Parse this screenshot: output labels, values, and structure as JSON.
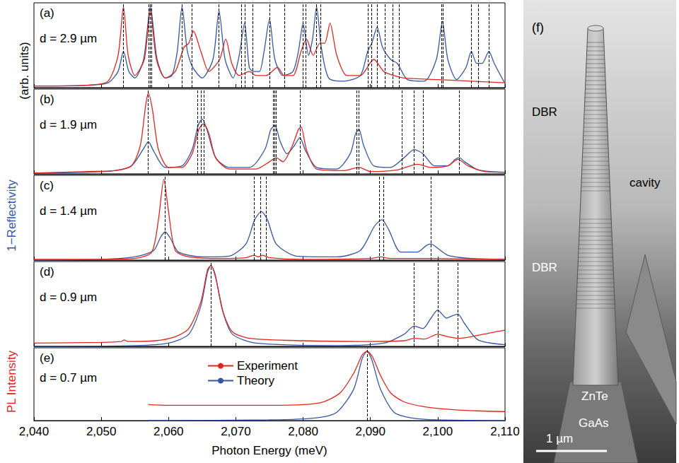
{
  "chart_data": [
    {
      "type": "line",
      "panel": "(a)",
      "title": "d = 2.9 µm",
      "xlim": [
        2040,
        2110
      ],
      "xticks": [
        2040,
        2050,
        2060,
        2070,
        2080,
        2090,
        2100,
        2110
      ],
      "ylim": [
        0,
        1.05
      ],
      "tick_labels": false,
      "modes": [
        2053.3,
        2057.1,
        2057.3,
        2057.5,
        2062,
        2063.5,
        2067.5,
        2070.8,
        2071.3,
        2072.5,
        2075,
        2077.2,
        2080,
        2080.4,
        2082,
        2082.6,
        2089.6,
        2090.2,
        2091,
        2092.2,
        2093.3,
        2094.3,
        2100.6,
        2100.8,
        2105,
        2106,
        2107.6
      ],
      "series": [
        {
          "name": "Experiment",
          "color": "#e3241c",
          "x": [
            2040,
            2048,
            2051,
            2052.5,
            2053.3,
            2054,
            2055,
            2056.4,
            2057.3,
            2058.2,
            2059.5,
            2061,
            2062.3,
            2063,
            2063.7,
            2064.8,
            2066,
            2067.6,
            2068.5,
            2069.4,
            2070.5,
            2072,
            2073,
            2074.5,
            2076.2,
            2077.2,
            2078.5,
            2079.7,
            2080.5,
            2081.5,
            2082.5,
            2083.2,
            2084,
            2085,
            2086.5,
            2088.5,
            2090.5,
            2092,
            2093.5,
            2095,
            2100,
            2105,
            2110
          ],
          "values": [
            0.02,
            0.03,
            0.08,
            0.4,
            1.0,
            0.4,
            0.15,
            0.35,
            0.95,
            0.35,
            0.12,
            0.2,
            0.5,
            0.55,
            0.7,
            0.45,
            0.2,
            0.35,
            0.6,
            0.3,
            0.15,
            0.2,
            0.15,
            0.15,
            0.25,
            0.15,
            0.15,
            0.45,
            0.6,
            0.4,
            0.55,
            0.55,
            0.8,
            0.4,
            0.15,
            0.15,
            0.35,
            0.2,
            0.15,
            0.12,
            0.1,
            0.08,
            0.06
          ]
        },
        {
          "name": "Theory",
          "color": "#3455a8",
          "x": [
            2040,
            2048,
            2051,
            2052.5,
            2053.3,
            2054.1,
            2055,
            2056.3,
            2057.3,
            2058.3,
            2059.5,
            2060.5,
            2061.3,
            2062,
            2062.8,
            2063.6,
            2065,
            2066.6,
            2067.5,
            2068.4,
            2069.6,
            2070.5,
            2071.3,
            2072,
            2072.6,
            2073.5,
            2074.2,
            2075,
            2075.8,
            2077,
            2078.5,
            2079.3,
            2080,
            2080.8,
            2081.4,
            2082,
            2082.7,
            2083.8,
            2086,
            2088.5,
            2089.6,
            2090.2,
            2091,
            2091.8,
            2093,
            2094,
            2095.5,
            2098,
            2099.8,
            2100.7,
            2101.5,
            2102.8,
            2104.2,
            2105,
            2105.8,
            2106.6,
            2107.6,
            2108.4,
            2110
          ],
          "values": [
            0.02,
            0.03,
            0.06,
            0.2,
            0.45,
            0.2,
            0.12,
            0.35,
            1.0,
            0.35,
            0.12,
            0.15,
            0.45,
            1.0,
            0.45,
            0.25,
            0.12,
            0.35,
            0.95,
            0.35,
            0.12,
            0.4,
            0.8,
            0.25,
            0.2,
            0.2,
            0.45,
            0.85,
            0.35,
            0.15,
            0.2,
            0.45,
            0.8,
            0.4,
            0.6,
            1.0,
            0.5,
            0.12,
            0.08,
            0.15,
            0.45,
            0.55,
            0.75,
            0.5,
            0.35,
            0.3,
            0.1,
            0.08,
            0.35,
            0.82,
            0.35,
            0.1,
            0.25,
            0.45,
            0.3,
            0.3,
            0.45,
            0.3,
            0.05
          ]
        }
      ]
    },
    {
      "type": "line",
      "panel": "(b)",
      "title": "d = 1.9 µm",
      "xlim": [
        2040,
        2110
      ],
      "xticks": [
        2040,
        2050,
        2060,
        2070,
        2080,
        2090,
        2100,
        2110
      ],
      "ylim": [
        0,
        1.05
      ],
      "tick_labels": false,
      "modes": [
        2057,
        2064.3,
        2064.8,
        2065.3,
        2075.5,
        2075.8,
        2076,
        2079.5,
        2088,
        2088.3,
        2094.7,
        2096.5,
        2097.8,
        2103.2
      ],
      "series": [
        {
          "name": "Experiment",
          "color": "#e3241c",
          "x": [
            2040,
            2048,
            2052,
            2054.5,
            2055.8,
            2056.6,
            2057,
            2057.6,
            2058.5,
            2060,
            2062,
            2063.5,
            2064.5,
            2065.2,
            2066,
            2067,
            2069,
            2073,
            2075,
            2076,
            2077,
            2078.4,
            2079.3,
            2079.7,
            2080.5,
            2082,
            2086,
            2088.3,
            2090,
            2094,
            2097,
            2099,
            2101.5,
            2103,
            2104.5,
            2107,
            2110
          ],
          "values": [
            0.01,
            0.03,
            0.04,
            0.1,
            0.35,
            0.85,
            1.0,
            0.8,
            0.3,
            0.08,
            0.08,
            0.25,
            0.55,
            0.62,
            0.5,
            0.2,
            0.06,
            0.06,
            0.15,
            0.2,
            0.15,
            0.35,
            0.55,
            0.58,
            0.3,
            0.06,
            0.04,
            0.08,
            0.03,
            0.05,
            0.12,
            0.08,
            0.1,
            0.18,
            0.1,
            0.03,
            0.02
          ]
        },
        {
          "name": "Theory",
          "color": "#3455a8",
          "x": [
            2040,
            2048,
            2052,
            2054.5,
            2056.2,
            2057,
            2057.8,
            2059.5,
            2062,
            2063.5,
            2064.4,
            2065,
            2065.7,
            2067,
            2069,
            2072,
            2074.3,
            2075.2,
            2075.8,
            2076.6,
            2077.6,
            2078.7,
            2079.5,
            2080.4,
            2082,
            2085,
            2087,
            2087.8,
            2088.3,
            2089,
            2090.5,
            2093,
            2095,
            2096.5,
            2097.8,
            2099.5,
            2101.5,
            2102.6,
            2103.2,
            2104,
            2106,
            2110
          ],
          "values": [
            0.01,
            0.02,
            0.04,
            0.1,
            0.3,
            0.4,
            0.28,
            0.08,
            0.1,
            0.3,
            0.6,
            0.68,
            0.55,
            0.2,
            0.08,
            0.08,
            0.3,
            0.55,
            0.6,
            0.4,
            0.25,
            0.35,
            0.45,
            0.28,
            0.08,
            0.06,
            0.25,
            0.5,
            0.55,
            0.35,
            0.1,
            0.08,
            0.2,
            0.3,
            0.25,
            0.1,
            0.1,
            0.18,
            0.2,
            0.15,
            0.05,
            0.02
          ]
        }
      ]
    },
    {
      "type": "line",
      "panel": "(c)",
      "title": "d = 1.4 µm",
      "xlim": [
        2040,
        2110
      ],
      "xticks": [
        2040,
        2050,
        2060,
        2070,
        2080,
        2090,
        2100,
        2110
      ],
      "ylim": [
        0,
        1.05
      ],
      "tick_labels": false,
      "modes": [
        2059.5,
        2072.7,
        2073.7,
        2074.5,
        2091.3,
        2092,
        2099
      ],
      "series": [
        {
          "name": "Experiment",
          "color": "#e3241c",
          "x": [
            2040,
            2050,
            2055,
            2057.5,
            2058.5,
            2059.3,
            2060,
            2061,
            2063,
            2068,
            2071.5,
            2072.7,
            2073.3,
            2074,
            2075,
            2080,
            2090,
            2091.5,
            2093,
            2099,
            2110
          ],
          "values": [
            0.01,
            0.01,
            0.02,
            0.1,
            0.5,
            1.0,
            0.6,
            0.12,
            0.04,
            0.02,
            0.03,
            0.06,
            0.04,
            0.06,
            0.03,
            0.01,
            0.02,
            0.04,
            0.02,
            0.02,
            0.01
          ]
        },
        {
          "name": "Theory",
          "color": "#3455a8",
          "x": [
            2040,
            2050,
            2055,
            2057.8,
            2058.8,
            2059.5,
            2060.2,
            2061.5,
            2065,
            2069,
            2071.5,
            2072.8,
            2073.8,
            2074.7,
            2076,
            2079,
            2085,
            2088.5,
            2090.6,
            2091.7,
            2092.7,
            2094.5,
            2097,
            2098.3,
            2099,
            2099.8,
            2101.5,
            2105,
            2110
          ],
          "values": [
            0,
            0.01,
            0.04,
            0.12,
            0.28,
            0.35,
            0.28,
            0.1,
            0.04,
            0.05,
            0.2,
            0.5,
            0.6,
            0.5,
            0.2,
            0.05,
            0.04,
            0.12,
            0.42,
            0.5,
            0.38,
            0.1,
            0.1,
            0.18,
            0.2,
            0.16,
            0.06,
            0.02,
            0.01
          ]
        }
      ]
    },
    {
      "type": "line",
      "panel": "(d)",
      "title": "d = 0.9 µm",
      "xlim": [
        2040,
        2110
      ],
      "xticks": [
        2040,
        2050,
        2060,
        2070,
        2080,
        2090,
        2100,
        2110
      ],
      "ylim": [
        0,
        1.05
      ],
      "tick_labels": false,
      "modes": [
        2066.3,
        2096.5,
        2100,
        2103
      ],
      "series": [
        {
          "name": "Experiment",
          "color": "#e3241c",
          "x": [
            2040,
            2050,
            2053,
            2053.4,
            2054,
            2058,
            2061,
            2063,
            2064.8,
            2065.8,
            2066.3,
            2067,
            2068.2,
            2069.5,
            2072,
            2080,
            2090,
            2095,
            2096.5,
            2098,
            2100,
            2101.5,
            2103,
            2105,
            2108,
            2110
          ],
          "values": [
            0.04,
            0.05,
            0.06,
            0.08,
            0.06,
            0.07,
            0.12,
            0.22,
            0.55,
            0.95,
            1.0,
            0.85,
            0.4,
            0.18,
            0.1,
            0.07,
            0.06,
            0.07,
            0.1,
            0.09,
            0.15,
            0.12,
            0.1,
            0.12,
            0.17,
            0.2
          ]
        },
        {
          "name": "Theory",
          "color": "#3455a8",
          "x": [
            2040,
            2055,
            2060,
            2063,
            2064.8,
            2065.8,
            2066.3,
            2066.9,
            2068,
            2069.5,
            2073,
            2085,
            2092,
            2095,
            2096.5,
            2097.8,
            2099,
            2100,
            2101.3,
            2102.2,
            2103,
            2104,
            2106,
            2110
          ],
          "values": [
            0,
            0.01,
            0.04,
            0.15,
            0.5,
            0.92,
            1.0,
            0.9,
            0.45,
            0.15,
            0.04,
            0.01,
            0.04,
            0.15,
            0.25,
            0.22,
            0.35,
            0.45,
            0.35,
            0.38,
            0.4,
            0.28,
            0.08,
            0.02
          ]
        }
      ]
    },
    {
      "type": "line",
      "panel": "(e)",
      "title": "d = 0.7 µm",
      "xlabel": "Photon Energy (meV)",
      "legend": "left",
      "xlim": [
        2040,
        2110
      ],
      "xticks": [
        2040,
        2050,
        2060,
        2070,
        2080,
        2090,
        2100,
        2110
      ],
      "ylim": [
        0,
        1.05
      ],
      "tick_labels": "x",
      "modes": [
        2089.5
      ],
      "series": [
        {
          "name": "Experiment",
          "color": "#e3241c",
          "x": [
            2057,
            2060,
            2065,
            2070,
            2075,
            2080,
            2083,
            2085.5,
            2087.5,
            2088.8,
            2089.5,
            2090.3,
            2091.5,
            2093,
            2095,
            2098,
            2102,
            2106,
            2110
          ],
          "values": [
            0.23,
            0.22,
            0.22,
            0.22,
            0.22,
            0.23,
            0.27,
            0.4,
            0.68,
            0.95,
            1.0,
            0.92,
            0.65,
            0.4,
            0.27,
            0.2,
            0.16,
            0.14,
            0.13
          ]
        },
        {
          "name": "Theory",
          "color": "#3455a8",
          "x": [
            2057,
            2075,
            2082,
            2085,
            2087.5,
            2088.8,
            2089.5,
            2090.2,
            2091.5,
            2093.5,
            2096,
            2100,
            2110
          ],
          "values": [
            0,
            0.01,
            0.04,
            0.12,
            0.45,
            0.9,
            1.0,
            0.88,
            0.45,
            0.12,
            0.04,
            0.01,
            0
          ]
        }
      ]
    }
  ],
  "shared_ylabel": [
    {
      "text": "(arb. units)",
      "color": "#000000"
    },
    {
      "text": "1−Reflectivity",
      "color": "#3455a8"
    },
    {
      "text": "PL Intensity",
      "color": "#e3241c"
    }
  ],
  "image_panel": {
    "panel": "(f)",
    "labels": [
      "DBR",
      "cavity",
      "DBR",
      "ZnTe",
      "GaAs"
    ],
    "scale_bar": "1 µm"
  }
}
